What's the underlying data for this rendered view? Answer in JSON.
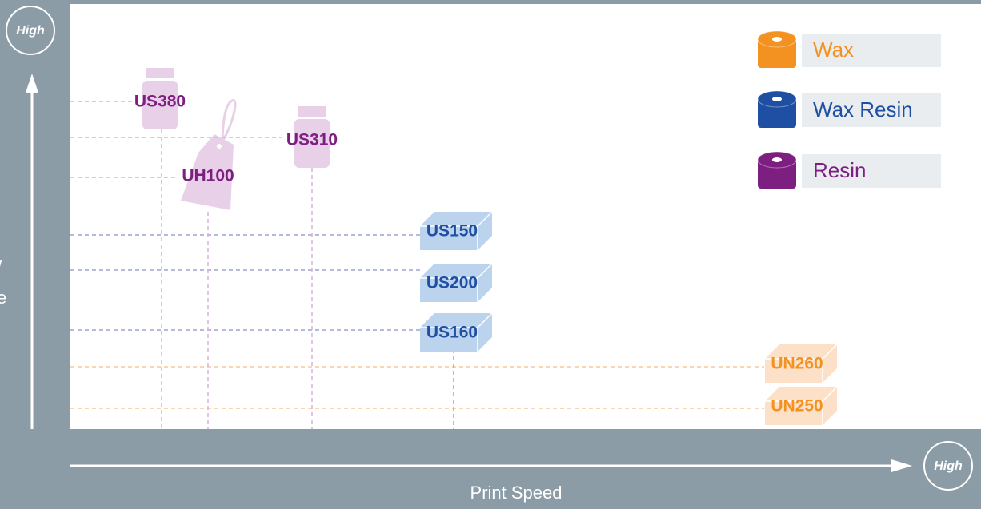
{
  "y_axis": {
    "badge": "High",
    "label_fragments": [
      "/",
      "e"
    ]
  },
  "x_axis": {
    "badge": "High",
    "label": "Print Speed"
  },
  "legend": [
    {
      "name": "Wax",
      "color": "#f39220",
      "products": [
        "UN260",
        "UN250"
      ]
    },
    {
      "name": "Wax Resin",
      "color": "#1f4fa3",
      "products": [
        "US150",
        "US200",
        "US160"
      ]
    },
    {
      "name": "Resin",
      "color": "#7d1f80",
      "products": [
        "US380",
        "UH100",
        "US310"
      ]
    }
  ]
}
